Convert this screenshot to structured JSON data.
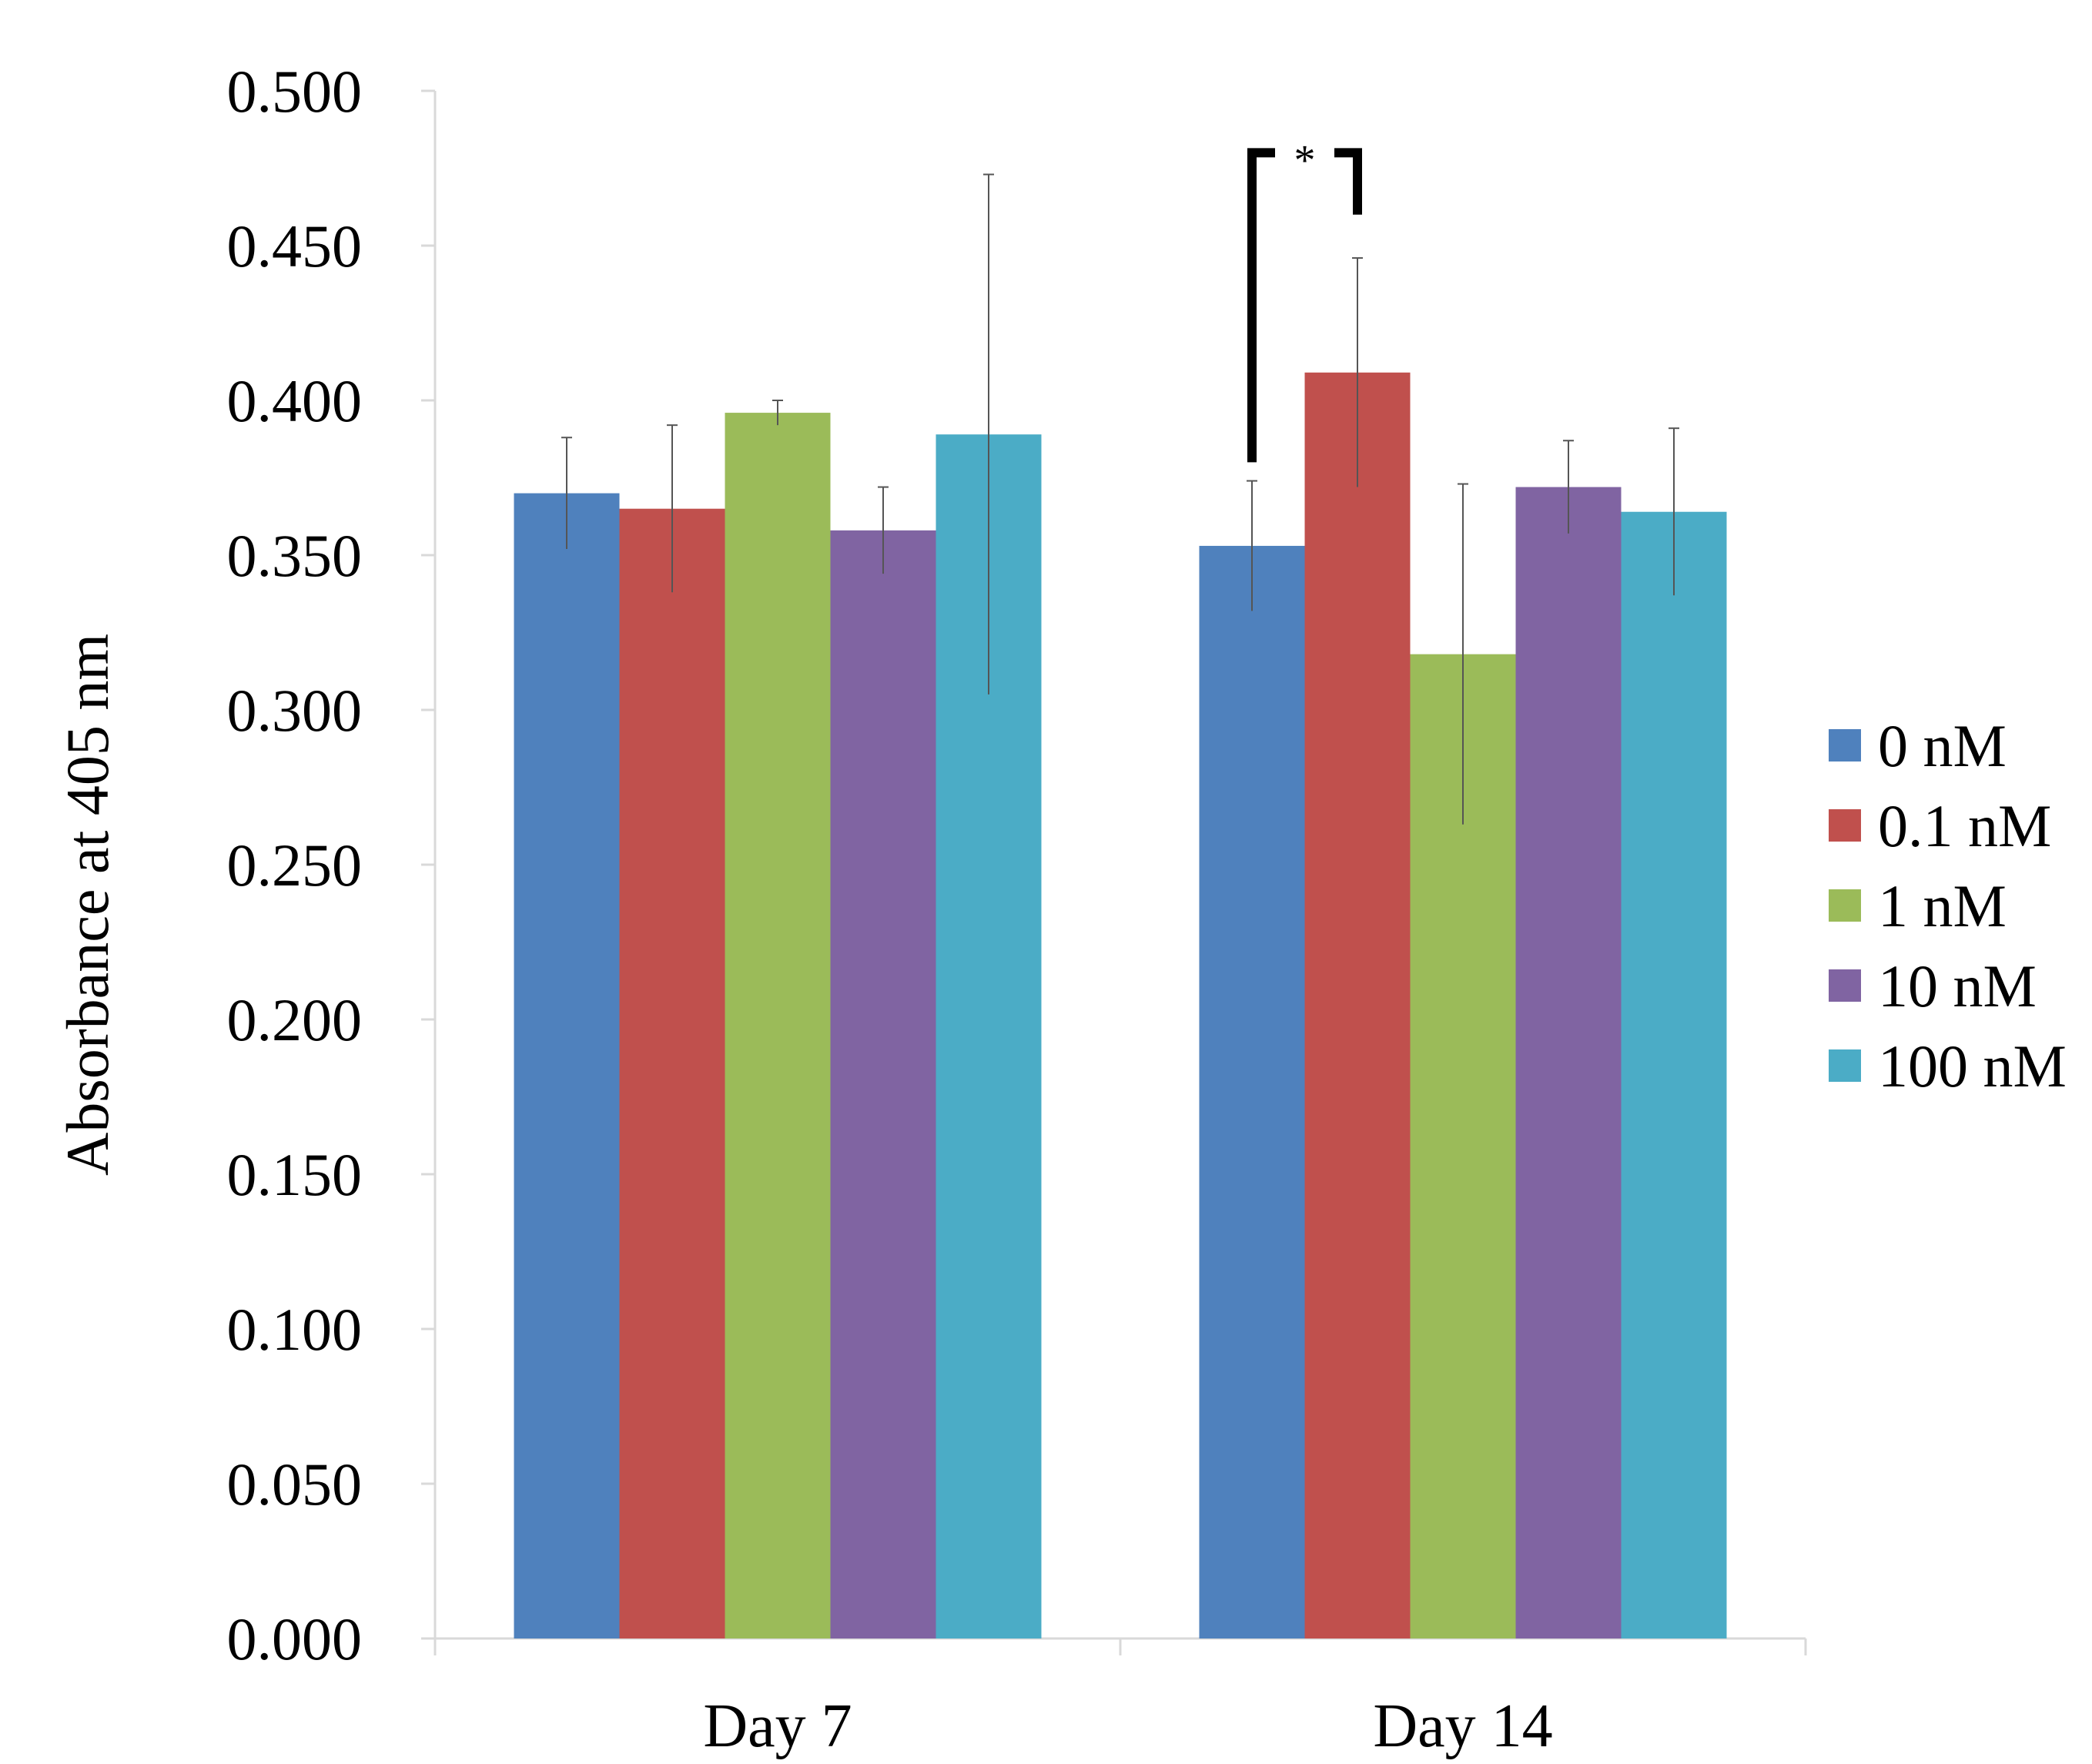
{
  "chart_data": {
    "type": "bar",
    "title": "",
    "xlabel": "",
    "ylabel": "Absorbance at 405 nm",
    "ylim": [
      0,
      0.5
    ],
    "y_ticks": [
      "0.000",
      "0.050",
      "0.100",
      "0.150",
      "0.200",
      "0.250",
      "0.300",
      "0.350",
      "0.400",
      "0.450",
      "0.500"
    ],
    "y_tick_values": [
      0,
      0.05,
      0.1,
      0.15,
      0.2,
      0.25,
      0.3,
      0.35,
      0.4,
      0.45,
      0.5
    ],
    "grid": false,
    "legend_position": "right",
    "categories": [
      "Day 7",
      "Day 14"
    ],
    "series": [
      {
        "name": "0 nM",
        "color": "#4f81bd",
        "values": [
          0.37,
          0.353
        ],
        "errors": [
          0.018,
          0.021
        ]
      },
      {
        "name": "0.1 nM",
        "color": "#c0504d",
        "values": [
          0.365,
          0.409
        ],
        "errors": [
          0.027,
          0.037
        ]
      },
      {
        "name": "1 nM",
        "color": "#9bbb59",
        "values": [
          0.396,
          0.318
        ],
        "errors": [
          0.004,
          0.055
        ]
      },
      {
        "name": "10 nM",
        "color": "#8064a2",
        "values": [
          0.358,
          0.372
        ],
        "errors": [
          0.014,
          0.015
        ]
      },
      {
        "name": "100 nM",
        "color": "#4bacc6",
        "values": [
          0.389,
          0.364
        ],
        "errors": [
          0.084,
          0.027
        ]
      }
    ],
    "annotations": [
      {
        "type": "significance",
        "label": "*",
        "category": "Day 14",
        "between": [
          "0 nM",
          "0.1 nM"
        ],
        "left_y": 0.38,
        "right_y": 0.46,
        "top_y": 0.48
      }
    ]
  }
}
